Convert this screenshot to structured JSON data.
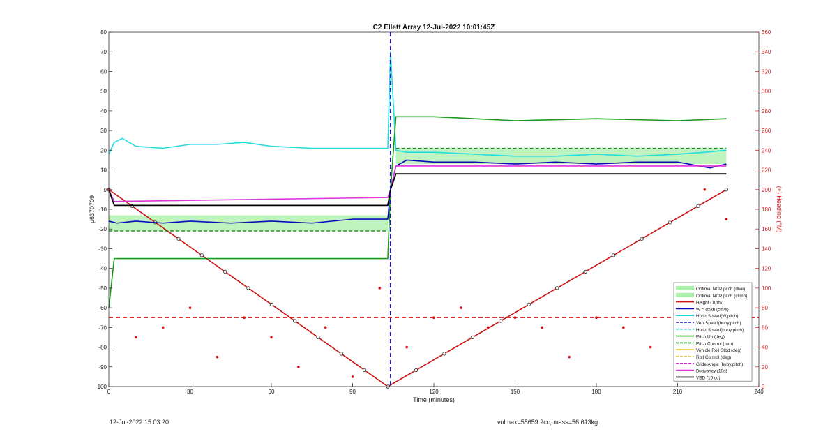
{
  "footer": {
    "timestamp": "12-Jul-2022 15:03:20",
    "summary": "volmax=55659.2cc, mass=56.613kg"
  },
  "chart_data": {
    "type": "line",
    "title": "C2 Ellett Array 12-Jul-2022 10:01:45Z",
    "xlabel": "Time (minutes)",
    "ylabel": "p6370709",
    "y2label": "(+) Heading (°M)",
    "xlim": [
      0,
      240
    ],
    "ylim": [
      -100,
      80
    ],
    "y2lim": [
      0,
      360
    ],
    "xticks": [
      0,
      30,
      60,
      90,
      120,
      150,
      180,
      210,
      240
    ],
    "yticks": [
      -100,
      -90,
      -80,
      -70,
      -60,
      -50,
      -40,
      -30,
      -20,
      -10,
      0,
      10,
      20,
      30,
      40,
      50,
      60,
      70,
      80
    ],
    "y2ticks": [
      0,
      20,
      40,
      60,
      80,
      100,
      120,
      140,
      160,
      180,
      200,
      220,
      240,
      260,
      280,
      300,
      320,
      340,
      360
    ],
    "grid": false,
    "legend_position": "bottom-right",
    "colors": {
      "axis_right": "#cc2222",
      "green_band": "#a9f0a9",
      "height": "#cc1111",
      "w": "#0a0ab8",
      "horiz": "#22dddd",
      "vert": "#1a1acc",
      "pitch": "#1a9a1a",
      "roll": "#d9c200",
      "glide": "#e020e0",
      "buoyancy": "#dd33dd",
      "vbd": "#000000",
      "heading": "#dd1111"
    },
    "legend": [
      "Optimal NCP pitch (dive)",
      "Optimal NCP pitch (climb)",
      "Height (10m)",
      "W = dz/dt (cm/s)",
      "Horiz Speed(W,pitch)",
      "Vert Speed(buoy,pitch)",
      "Horiz Speed(buoy,pitch)",
      "Pitch Up (deg)",
      "Pitch Control (mm)",
      "Vehicle Roll Stbd (deg)",
      "Roll Control (deg)",
      "Glide Angle (buoy,pitch)",
      "Buoyancy (10g)",
      "VBD (10 cc)"
    ],
    "band_dive": {
      "x": [
        0,
        103
      ],
      "y_low": -21,
      "y_high": -13
    },
    "band_climb": {
      "x": [
        106,
        228
      ],
      "y_low": 13,
      "y_high": 21
    },
    "series": [
      {
        "name": "Height (10m)",
        "x": [
          0,
          103,
          228
        ],
        "y": [
          0,
          -100,
          0
        ]
      },
      {
        "name": "W = dz/dt (cm/s)",
        "x": [
          0,
          3,
          10,
          20,
          30,
          45,
          60,
          75,
          90,
          103,
          104,
          106,
          110,
          120,
          135,
          150,
          165,
          180,
          195,
          210,
          218,
          222,
          228
        ],
        "y": [
          -16,
          -17,
          -16,
          -17,
          -16,
          -17,
          -16,
          -17,
          -15,
          -15,
          0,
          12,
          15,
          14,
          14,
          13,
          14,
          13,
          14,
          14,
          12,
          11,
          13
        ]
      },
      {
        "name": "Horiz Speed(W,pitch)",
        "x": [
          0,
          2,
          5,
          10,
          20,
          30,
          40,
          50,
          60,
          75,
          90,
          103,
          104,
          106,
          110,
          120,
          135,
          150,
          165,
          180,
          195,
          210,
          220,
          228
        ],
        "y": [
          18,
          24,
          26,
          22,
          21,
          23,
          23,
          24,
          22,
          21,
          21,
          21,
          70,
          20,
          19,
          19,
          18,
          17,
          17,
          18,
          17,
          18,
          19,
          20
        ]
      },
      {
        "name": "Pitch Up (deg)",
        "x": [
          0,
          2,
          5,
          20,
          40,
          60,
          80,
          103,
          104,
          106,
          120,
          150,
          180,
          210,
          228
        ],
        "y": [
          -60,
          -35,
          -35,
          -35,
          -35,
          -35,
          -35,
          -35,
          0,
          37,
          37,
          35,
          36,
          35,
          36
        ]
      },
      {
        "name": "Buoyancy (10g)",
        "x": [
          0,
          2,
          103,
          104,
          106,
          228
        ],
        "y": [
          0,
          -6,
          -4,
          0,
          12,
          12
        ]
      },
      {
        "name": "VBD (10 cc)",
        "x": [
          0,
          2,
          103,
          104,
          106,
          228
        ],
        "y": [
          0,
          -8,
          -8,
          0,
          8,
          8
        ]
      },
      {
        "name": "Optimal NCP pitch (dive)",
        "x": [
          0,
          103
        ],
        "y": [
          -21,
          -21
        ]
      },
      {
        "name": "Optimal NCP pitch (climb)",
        "x": [
          106,
          228
        ],
        "y": [
          21,
          21
        ]
      },
      {
        "name": "Heading",
        "x": [
          0,
          10,
          20,
          30,
          40,
          50,
          60,
          70,
          80,
          90,
          100,
          110,
          120,
          130,
          140,
          150,
          160,
          170,
          180,
          190,
          200,
          210,
          220,
          228
        ],
        "y": [
          200,
          50,
          60,
          80,
          30,
          70,
          50,
          20,
          60,
          10,
          100,
          40,
          70,
          80,
          60,
          70,
          60,
          30,
          70,
          60,
          40,
          80,
          200,
          170
        ]
      }
    ],
    "reference_lines": [
      {
        "name": "Heading reference",
        "axis": "y2",
        "y": 70
      },
      {
        "name": "Apogee marker",
        "axis": "x",
        "x": 104
      }
    ]
  }
}
